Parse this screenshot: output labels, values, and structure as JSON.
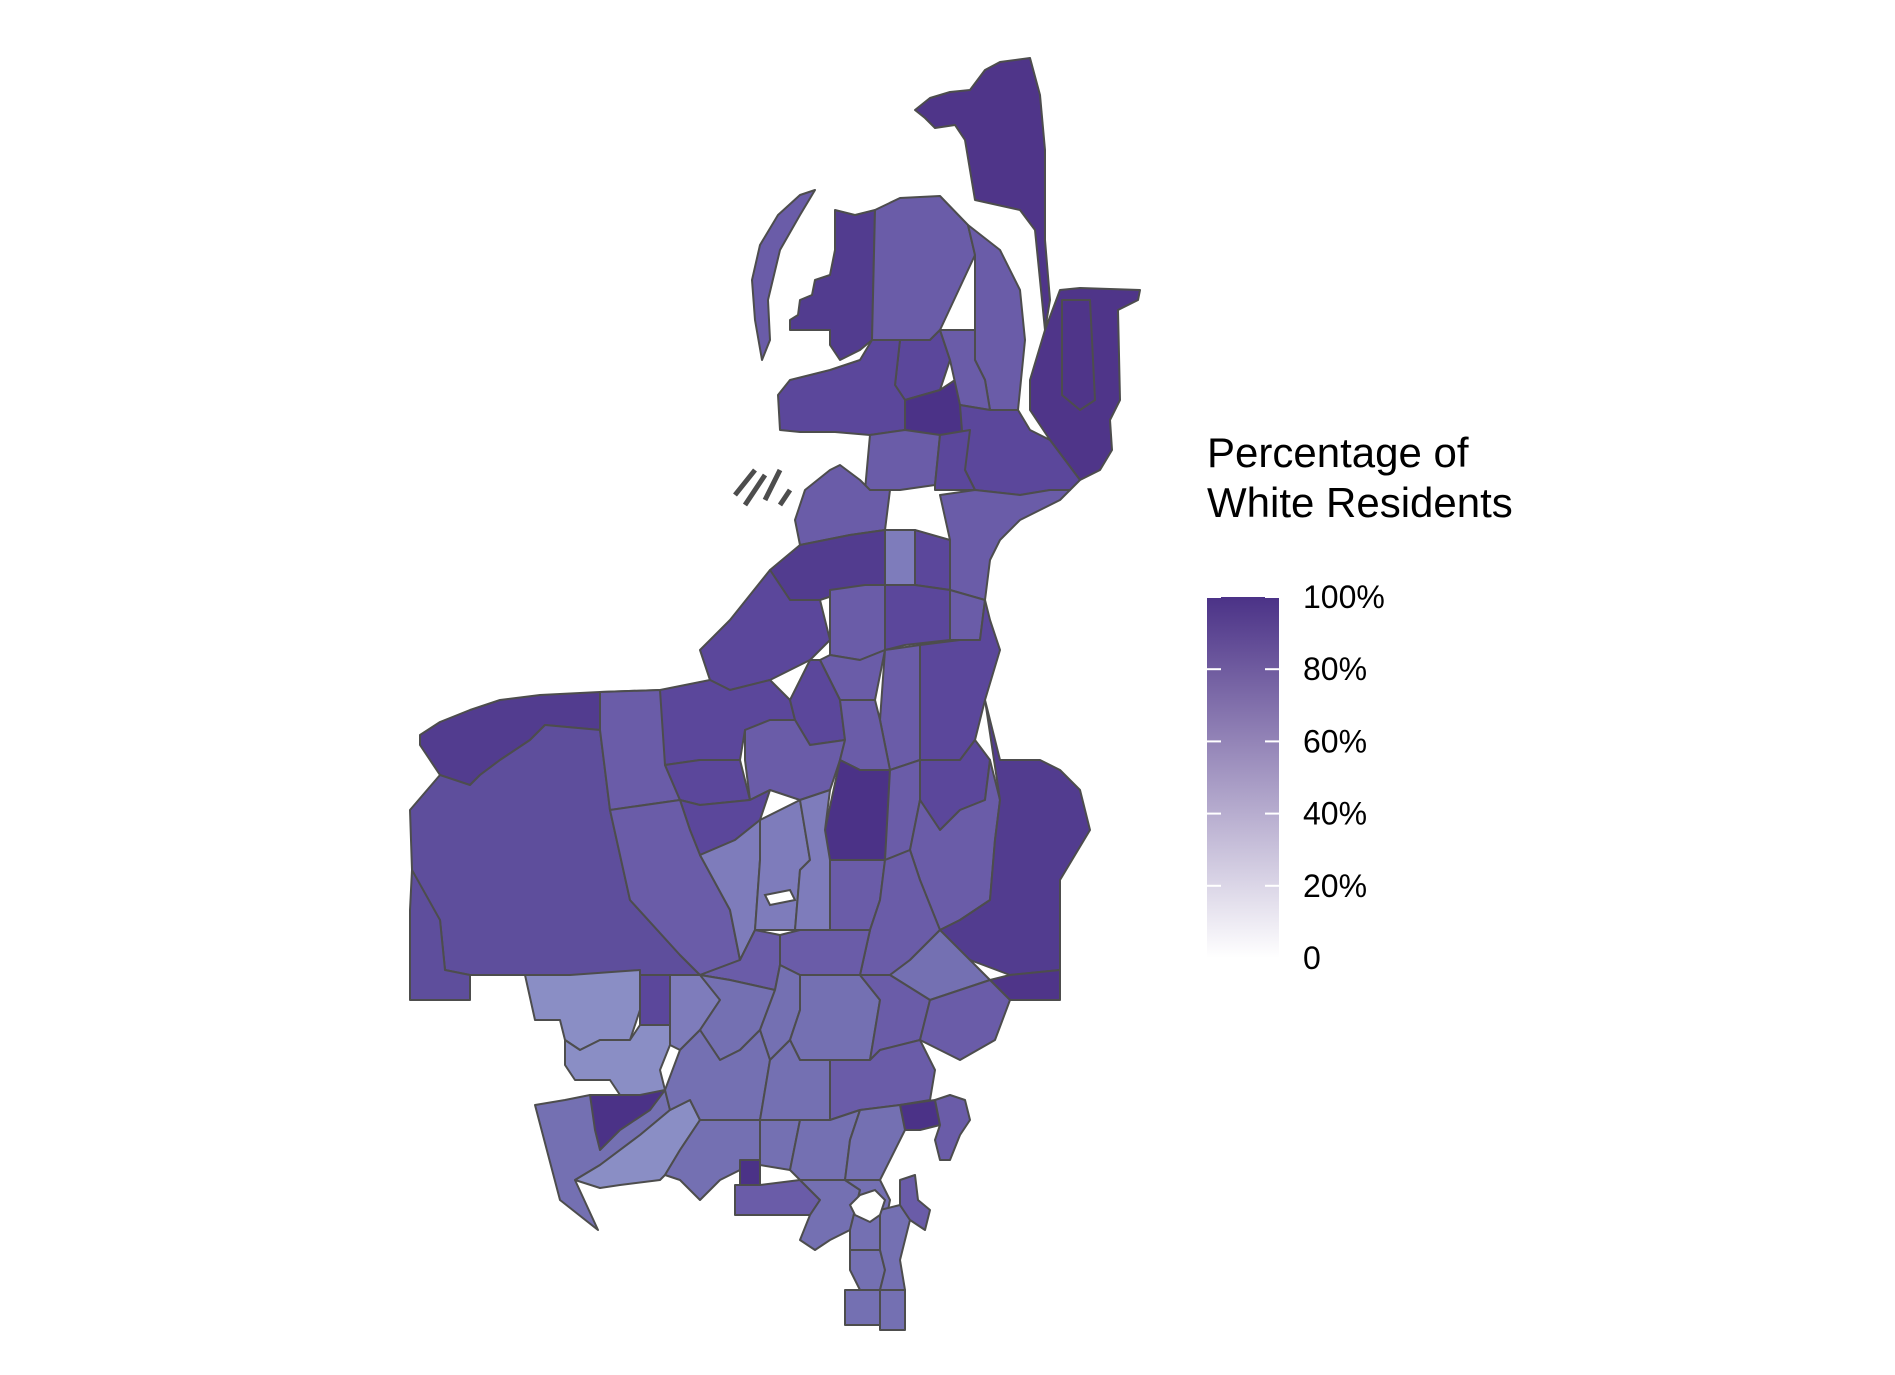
{
  "legend": {
    "title_line1": "Percentage of",
    "title_line2": "White Residents",
    "range": [
      0,
      100
    ],
    "ticks": [
      {
        "value": 100,
        "label": "100%"
      },
      {
        "value": 80,
        "label": "80%"
      },
      {
        "value": 60,
        "label": "60%"
      },
      {
        "value": 40,
        "label": "40%"
      },
      {
        "value": 20,
        "label": "20%"
      },
      {
        "value": 0,
        "label": "0"
      }
    ],
    "color_low": "#ffffff",
    "color_high": "#4b3287"
  },
  "colors": {
    "outline": "#4d4d4d",
    "background": "#ffffff"
  }
}
